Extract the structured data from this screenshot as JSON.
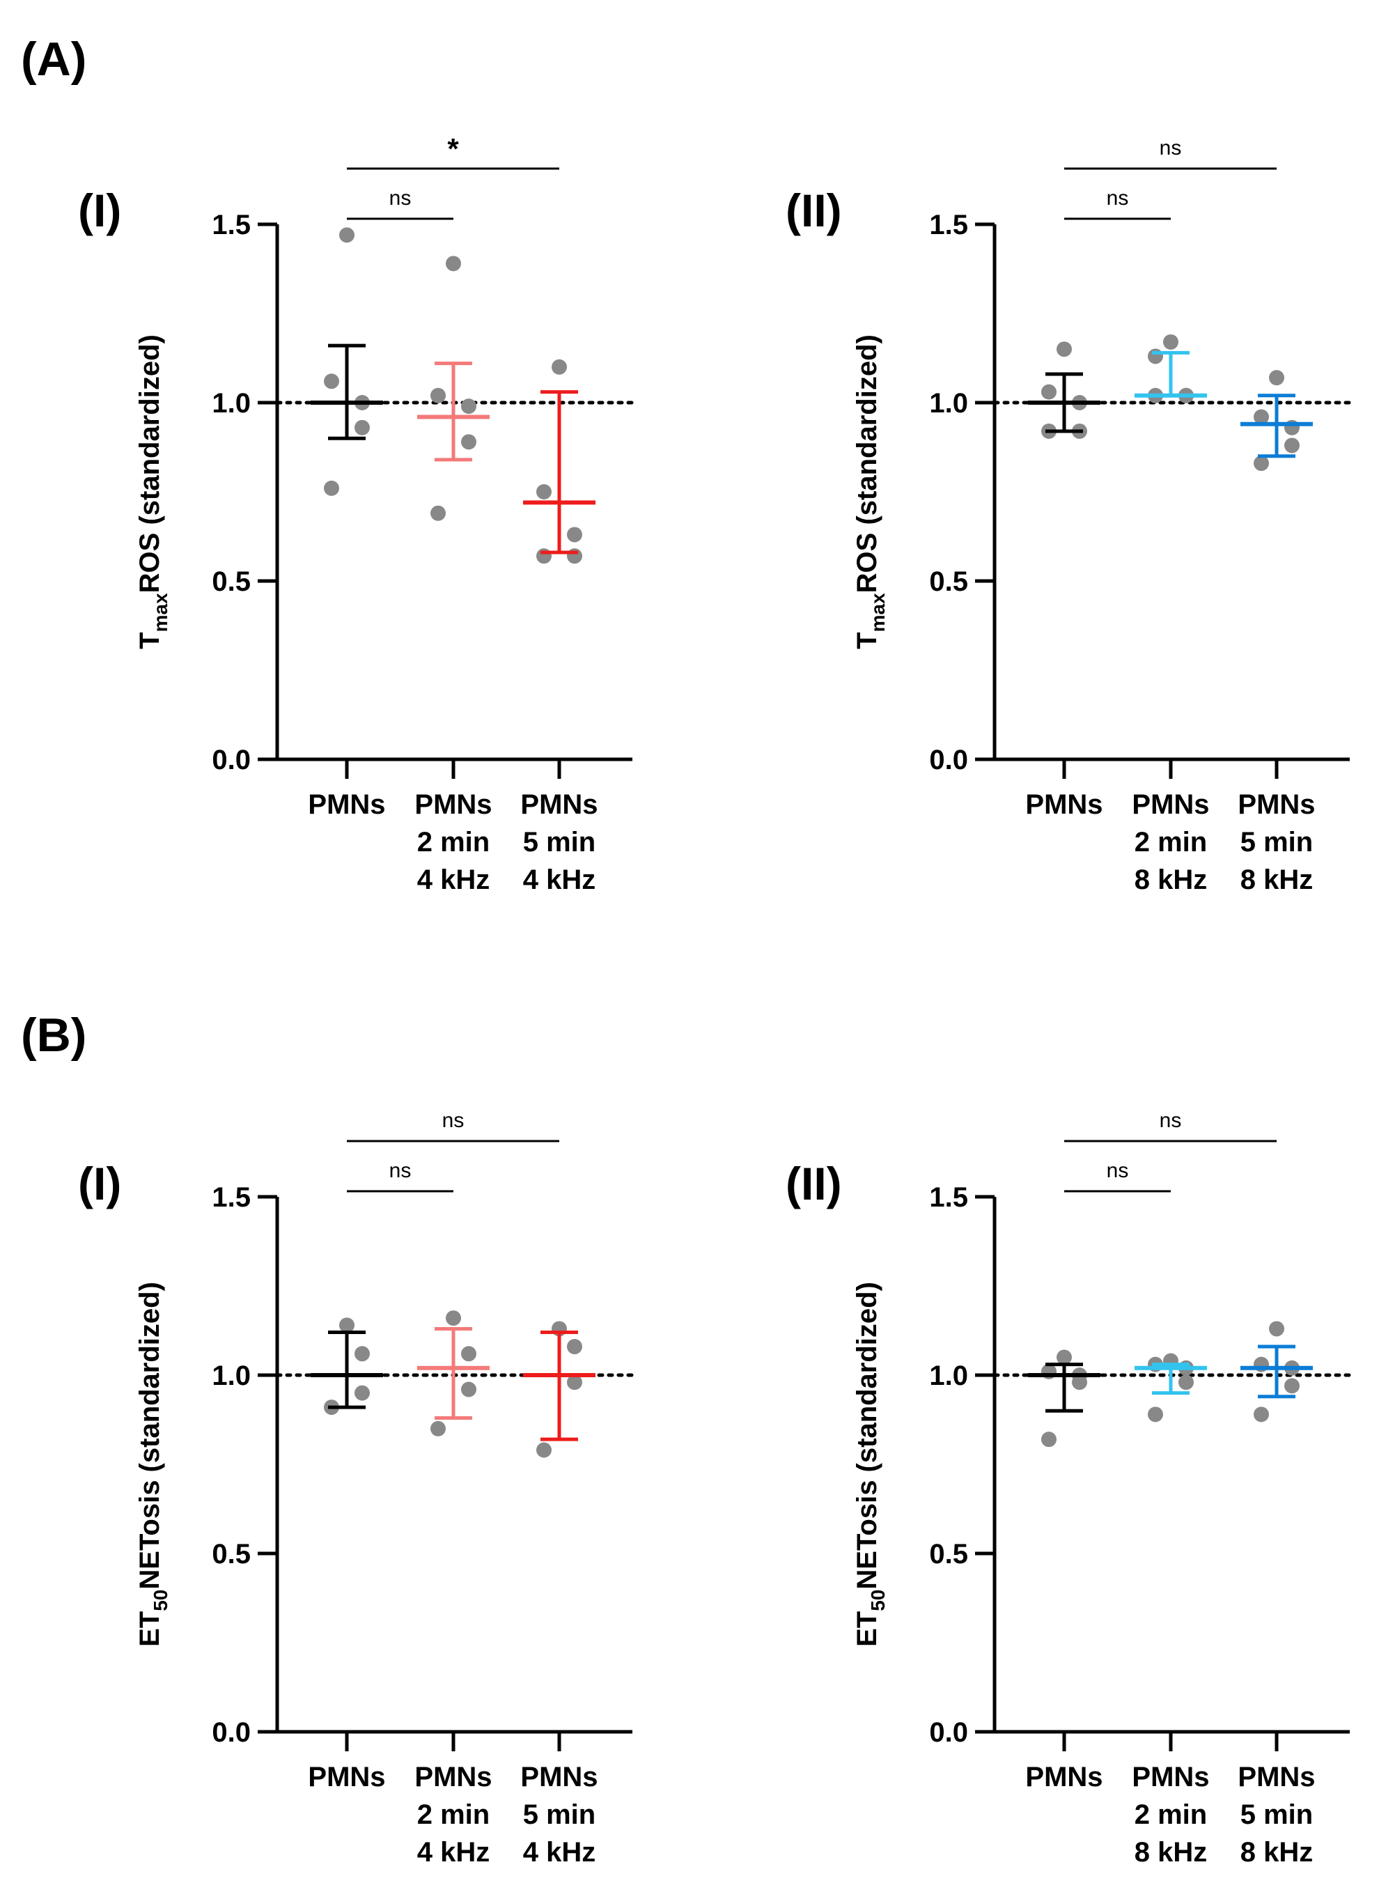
{
  "figure": {
    "panel_labels": [
      {
        "letter": "A",
        "open": "(",
        "close": ")"
      },
      {
        "letter": "B",
        "open": "(",
        "close": ")"
      }
    ]
  },
  "chart_data": [
    {
      "type": "scatter",
      "sublabel": "(I)",
      "ylabel_main": "T",
      "ylabel_sub": "max",
      "ylabel_rest": "ROS (standardized)",
      "ylim": [
        0,
        1.5
      ],
      "yticks": [
        "0.0",
        "0.5",
        "1.0",
        "1.5"
      ],
      "reference_line": 1.0,
      "categories": [
        [
          "PMNs"
        ],
        [
          "PMNs",
          "2 min",
          "4 kHz"
        ],
        [
          "PMNs",
          "5 min",
          "4 kHz"
        ]
      ],
      "colors": [
        "#000000",
        "#f47a7a",
        "#ee1c1c"
      ],
      "point_color": "#888888",
      "groups": [
        {
          "points": [
            1.47,
            1.06,
            1.0,
            0.93,
            0.76
          ],
          "mean": 1.0,
          "err_low": 0.9,
          "err_high": 1.16
        },
        {
          "points": [
            1.39,
            1.02,
            0.99,
            0.89,
            0.69
          ],
          "mean": 0.96,
          "err_low": 0.84,
          "err_high": 1.11
        },
        {
          "points": [
            1.1,
            0.75,
            0.63,
            0.57,
            0.57
          ],
          "mean": 0.72,
          "err_low": 0.58,
          "err_high": 1.03
        }
      ],
      "comparisons": [
        {
          "from": 0,
          "to": 1,
          "label": "ns",
          "bold": false
        },
        {
          "from": 0,
          "to": 2,
          "label": "*",
          "bold": true
        }
      ]
    },
    {
      "type": "scatter",
      "sublabel": "(II)",
      "ylabel_main": "T",
      "ylabel_sub": "max",
      "ylabel_rest": "ROS (standardized)",
      "ylim": [
        0,
        1.5
      ],
      "yticks": [
        "0.0",
        "0.5",
        "1.0",
        "1.5"
      ],
      "reference_line": 1.0,
      "categories": [
        [
          "PMNs"
        ],
        [
          "PMNs",
          "2 min",
          "8 kHz"
        ],
        [
          "PMNs",
          "5 min",
          "8 kHz"
        ]
      ],
      "colors": [
        "#000000",
        "#33c3ef",
        "#0b7dd6"
      ],
      "point_color": "#888888",
      "groups": [
        {
          "points": [
            1.15,
            1.03,
            1.0,
            0.92,
            0.92
          ],
          "mean": 1.0,
          "err_low": 0.92,
          "err_high": 1.08
        },
        {
          "points": [
            1.17,
            1.13,
            1.02,
            1.02,
            1.02
          ],
          "mean": 1.02,
          "err_low": 1.02,
          "err_high": 1.14
        },
        {
          "points": [
            1.07,
            0.96,
            0.93,
            0.88,
            0.83
          ],
          "mean": 0.94,
          "err_low": 0.85,
          "err_high": 1.02
        }
      ],
      "comparisons": [
        {
          "from": 0,
          "to": 1,
          "label": "ns",
          "bold": false
        },
        {
          "from": 0,
          "to": 2,
          "label": "ns",
          "bold": false
        }
      ]
    },
    {
      "type": "scatter",
      "sublabel": "(I)",
      "ylabel_main": "ET",
      "ylabel_sub": "50",
      "ylabel_rest": "NETosis (standardized)",
      "ylim": [
        0,
        1.5
      ],
      "yticks": [
        "0.0",
        "0.5",
        "1.0",
        "1.5"
      ],
      "reference_line": 1.0,
      "categories": [
        [
          "PMNs"
        ],
        [
          "PMNs",
          "2 min",
          "4 kHz"
        ],
        [
          "PMNs",
          "5 min",
          "4 kHz"
        ]
      ],
      "colors": [
        "#000000",
        "#f47a7a",
        "#ee1c1c"
      ],
      "point_color": "#888888",
      "groups": [
        {
          "points": [
            1.14,
            1.06,
            0.95,
            0.91
          ],
          "mean": 1.0,
          "err_low": 0.91,
          "err_high": 1.12
        },
        {
          "points": [
            1.16,
            1.06,
            0.96,
            0.85
          ],
          "mean": 1.02,
          "err_low": 0.88,
          "err_high": 1.13
        },
        {
          "points": [
            1.13,
            1.08,
            0.98,
            0.79
          ],
          "mean": 1.0,
          "err_low": 0.82,
          "err_high": 1.12
        }
      ],
      "comparisons": [
        {
          "from": 0,
          "to": 1,
          "label": "ns",
          "bold": false
        },
        {
          "from": 0,
          "to": 2,
          "label": "ns",
          "bold": false
        }
      ]
    },
    {
      "type": "scatter",
      "sublabel": "(II)",
      "ylabel_main": "ET",
      "ylabel_sub": "50",
      "ylabel_rest": "NETosis (standardized)",
      "ylim": [
        0,
        1.5
      ],
      "yticks": [
        "0.0",
        "0.5",
        "1.0",
        "1.5"
      ],
      "reference_line": 1.0,
      "categories": [
        [
          "PMNs"
        ],
        [
          "PMNs",
          "2 min",
          "8 kHz"
        ],
        [
          "PMNs",
          "5 min",
          "8 kHz"
        ]
      ],
      "colors": [
        "#000000",
        "#33c3ef",
        "#0b7dd6"
      ],
      "point_color": "#888888",
      "groups": [
        {
          "points": [
            1.05,
            1.01,
            1.0,
            0.98,
            0.82
          ],
          "mean": 1.0,
          "err_low": 0.9,
          "err_high": 1.03
        },
        {
          "points": [
            1.04,
            1.03,
            1.02,
            0.98,
            0.89
          ],
          "mean": 1.02,
          "err_low": 0.95,
          "err_high": 1.03
        },
        {
          "points": [
            1.13,
            1.03,
            1.02,
            0.97,
            0.89
          ],
          "mean": 1.02,
          "err_low": 0.94,
          "err_high": 1.08
        }
      ],
      "comparisons": [
        {
          "from": 0,
          "to": 1,
          "label": "ns",
          "bold": false
        },
        {
          "from": 0,
          "to": 2,
          "label": "ns",
          "bold": false
        }
      ]
    }
  ]
}
